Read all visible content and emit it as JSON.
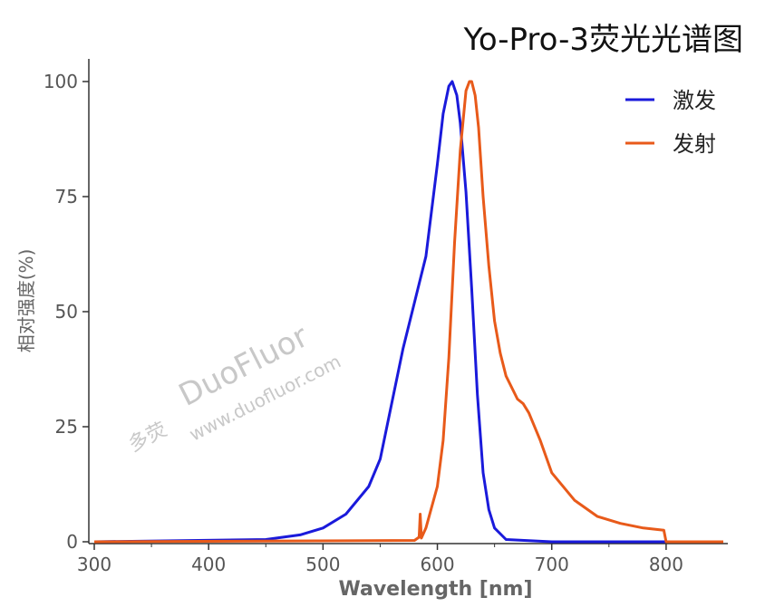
{
  "chart_data": {
    "type": "line",
    "title": "Yo-Pro-3荧光光谱图",
    "xlabel": "Wavelength [nm]",
    "ylabel": "相对强度(%)",
    "xlim": [
      300,
      850
    ],
    "ylim": [
      0,
      100
    ],
    "xticks": [
      300,
      400,
      500,
      600,
      700,
      800
    ],
    "yticks": [
      0,
      25,
      50,
      75,
      100
    ],
    "legend_position": "top-right",
    "grid": false,
    "series": [
      {
        "name": "激发",
        "color": "#1a1adb",
        "x": [
          300,
          450,
          480,
          500,
          520,
          540,
          550,
          560,
          570,
          580,
          590,
          600,
          605,
          610,
          613,
          617,
          620,
          625,
          630,
          635,
          640,
          645,
          650,
          660,
          700,
          850
        ],
        "y": [
          0,
          0.5,
          1.5,
          3,
          6,
          12,
          18,
          30,
          42,
          52,
          62,
          82,
          93,
          99,
          100,
          97,
          91,
          76,
          55,
          32,
          15,
          7,
          3,
          0.5,
          0,
          0
        ]
      },
      {
        "name": "发射",
        "color": "#e85a1a",
        "x": [
          300,
          580,
          584,
          585,
          586,
          590,
          600,
          605,
          610,
          615,
          620,
          625,
          628,
          630,
          633,
          636,
          640,
          645,
          650,
          655,
          660,
          670,
          675,
          680,
          690,
          700,
          720,
          740,
          760,
          780,
          798,
          800,
          810,
          850
        ],
        "y": [
          0,
          0.3,
          1,
          6,
          0.8,
          3,
          12,
          22,
          40,
          65,
          85,
          98,
          100,
          100,
          97,
          90,
          75,
          60,
          48,
          41,
          36,
          31,
          30,
          28,
          22,
          15,
          9,
          5.5,
          4,
          3,
          2.5,
          0,
          0,
          0
        ]
      }
    ]
  },
  "watermark": {
    "brand": "DuoFluor",
    "url": "www.duofluor.com",
    "logo_text": "多荧"
  }
}
